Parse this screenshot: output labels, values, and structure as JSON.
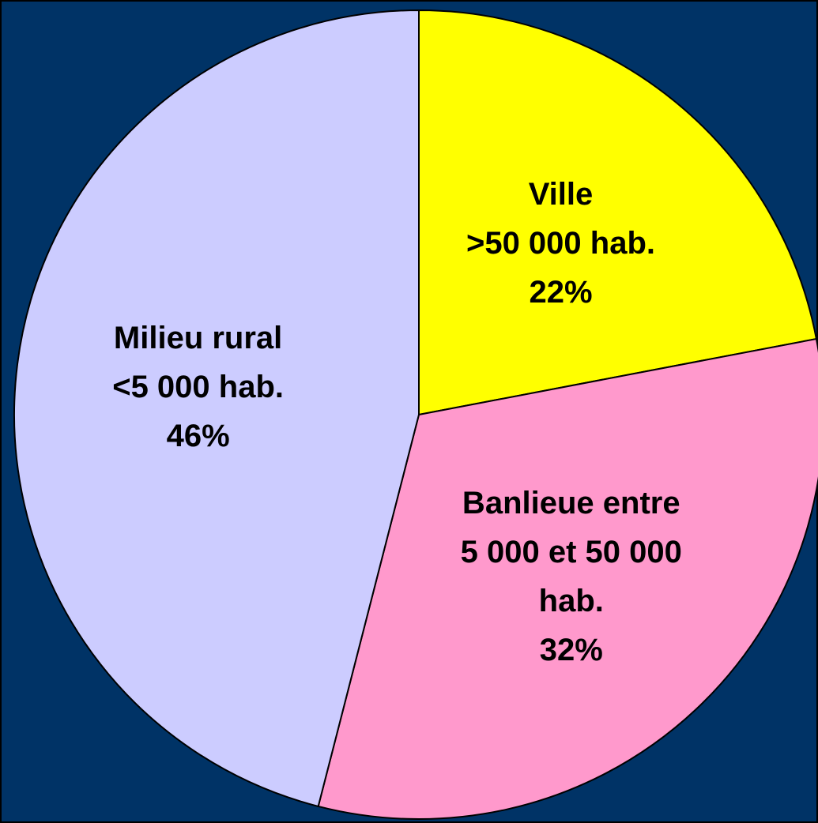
{
  "chart_data": {
    "type": "pie",
    "categories": [
      "Ville\n>50 000 hab.",
      "Banlieue entre\n5 000 et 50 000 hab.",
      "Milieu rural\n<5 000 hab."
    ],
    "values": [
      22,
      32,
      46
    ],
    "value_labels": [
      "22%",
      "32%",
      "46%"
    ],
    "colors": [
      "#ffff00",
      "#ff99cc",
      "#ccccff"
    ],
    "start_angle": 90,
    "direction": "clockwise"
  }
}
